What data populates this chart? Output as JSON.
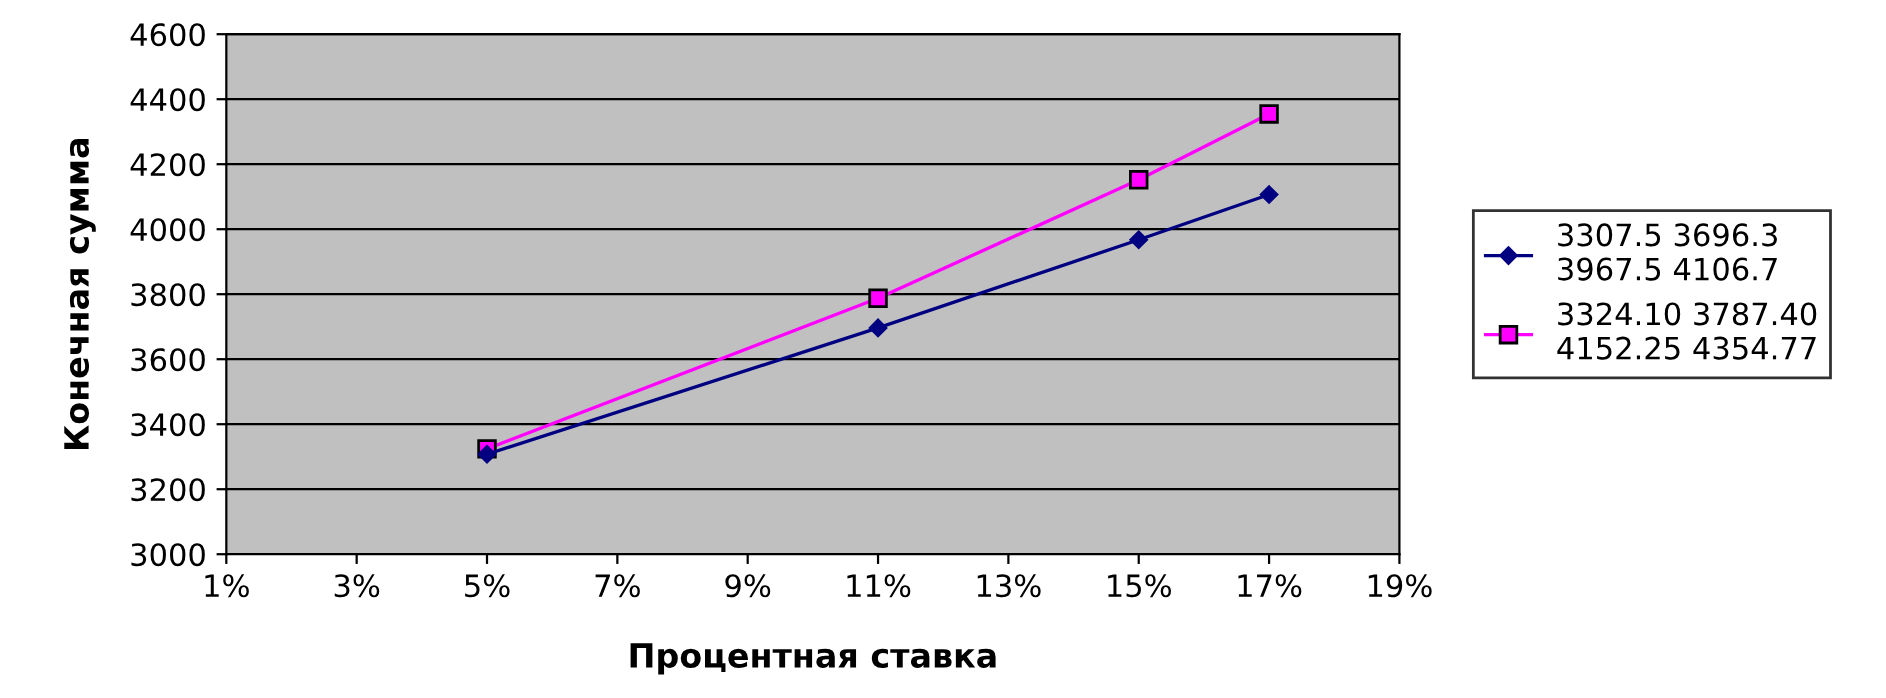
{
  "chart_data": {
    "type": "line",
    "xlabel": "Процентная ставка",
    "ylabel": "Конечная сумма",
    "x": [
      5,
      11,
      15,
      17
    ],
    "series": [
      {
        "name": "3307.5 3696.3\n3967.5 4106.7",
        "color": "#000080",
        "marker": "diamond",
        "values": [
          3307.5,
          3696.3,
          3967.5,
          4106.7
        ]
      },
      {
        "name": "3324.10 3787.40\n4152.25 4354.77",
        "color": "#ff00ff",
        "marker": "square",
        "values": [
          3324.1,
          3787.4,
          4152.25,
          4354.77
        ]
      }
    ],
    "xlim": [
      1,
      19
    ],
    "xticks": [
      {
        "value": 1,
        "label": "1%"
      },
      {
        "value": 3,
        "label": "3%"
      },
      {
        "value": 5,
        "label": "5%"
      },
      {
        "value": 7,
        "label": "7%"
      },
      {
        "value": 9,
        "label": "9%"
      },
      {
        "value": 11,
        "label": "11%"
      },
      {
        "value": 13,
        "label": "13%"
      },
      {
        "value": 15,
        "label": "15%"
      },
      {
        "value": 17,
        "label": "17%"
      },
      {
        "value": 19,
        "label": "19%"
      }
    ],
    "ylim": [
      3000,
      4600
    ],
    "yticks": [
      3000,
      3200,
      3400,
      3600,
      3800,
      4000,
      4200,
      4400,
      4600
    ],
    "grid": "y",
    "legend": "right",
    "line_style": "solid"
  }
}
